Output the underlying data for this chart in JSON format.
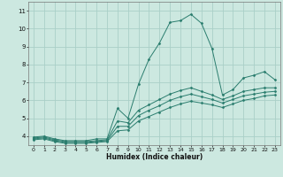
{
  "xlabel": "Humidex (Indice chaleur)",
  "bg_color": "#cce8e0",
  "line_color": "#2a7d6e",
  "grid_color": "#aacfc8",
  "lines": [
    {
      "x": [
        0,
        1,
        2,
        3,
        4,
        5,
        6,
        7,
        8,
        9,
        10,
        11,
        12,
        13,
        14,
        15,
        16,
        17,
        18,
        19,
        20,
        21,
        22,
        23
      ],
      "y": [
        3.95,
        4.0,
        3.85,
        3.75,
        3.75,
        3.75,
        3.85,
        3.85,
        5.55,
        5.0,
        6.9,
        8.3,
        9.2,
        10.35,
        10.45,
        10.8,
        10.3,
        8.9,
        6.3,
        6.6,
        7.25,
        7.4,
        7.6,
        7.15
      ]
    },
    {
      "x": [
        0,
        1,
        2,
        3,
        4,
        5,
        6,
        7,
        8,
        9,
        10,
        11,
        12,
        13,
        14,
        15,
        16,
        17,
        18,
        19,
        20,
        21,
        22,
        23
      ],
      "y": [
        3.9,
        3.95,
        3.8,
        3.7,
        3.7,
        3.7,
        3.75,
        3.8,
        4.85,
        4.75,
        5.45,
        5.75,
        6.05,
        6.35,
        6.55,
        6.7,
        6.5,
        6.3,
        6.05,
        6.25,
        6.5,
        6.6,
        6.7,
        6.7
      ]
    },
    {
      "x": [
        0,
        1,
        2,
        3,
        4,
        5,
        6,
        7,
        8,
        9,
        10,
        11,
        12,
        13,
        14,
        15,
        16,
        17,
        18,
        19,
        20,
        21,
        22,
        23
      ],
      "y": [
        3.85,
        3.9,
        3.75,
        3.65,
        3.65,
        3.65,
        3.7,
        3.75,
        4.55,
        4.55,
        5.15,
        5.45,
        5.7,
        6.0,
        6.2,
        6.35,
        6.2,
        6.05,
        5.85,
        6.05,
        6.25,
        6.35,
        6.45,
        6.5
      ]
    },
    {
      "x": [
        0,
        1,
        2,
        3,
        4,
        5,
        6,
        7,
        8,
        9,
        10,
        11,
        12,
        13,
        14,
        15,
        16,
        17,
        18,
        19,
        20,
        21,
        22,
        23
      ],
      "y": [
        3.8,
        3.85,
        3.7,
        3.6,
        3.6,
        3.6,
        3.65,
        3.7,
        4.3,
        4.35,
        4.85,
        5.1,
        5.35,
        5.6,
        5.8,
        5.95,
        5.85,
        5.75,
        5.6,
        5.8,
        6.0,
        6.1,
        6.25,
        6.3
      ]
    }
  ],
  "xlim": [
    -0.5,
    23.5
  ],
  "ylim": [
    3.5,
    11.5
  ],
  "xticks": [
    0,
    1,
    2,
    3,
    4,
    5,
    6,
    7,
    8,
    9,
    10,
    11,
    12,
    13,
    14,
    15,
    16,
    17,
    18,
    19,
    20,
    21,
    22,
    23
  ],
  "yticks": [
    4,
    5,
    6,
    7,
    8,
    9,
    10,
    11
  ]
}
